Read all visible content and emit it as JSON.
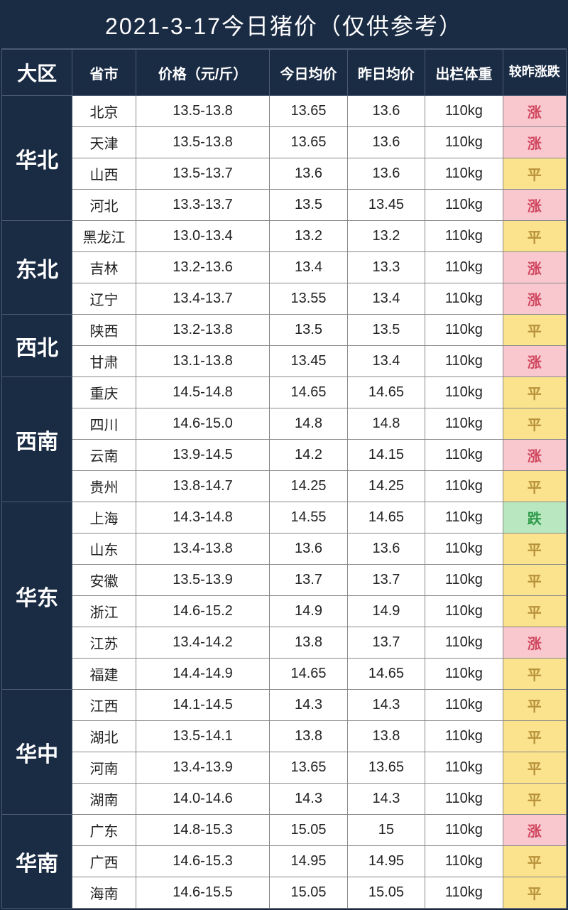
{
  "title": "2021-3-17今日猪价（仅供参考）",
  "columns": {
    "region": "大区",
    "province": "省市",
    "priceRange": "价格（元/斤）",
    "todayAvg": "今日均价",
    "yesterdayAvg": "昨日均价",
    "weight": "出栏体重",
    "trend": "较昨涨跌"
  },
  "trendLabels": {
    "up": "涨",
    "flat": "平",
    "down": "跌"
  },
  "colors": {
    "headerBg": "#1a2b44",
    "headerText": "#ffffff",
    "cellBorder": "#888888",
    "upBg": "#f9c8cf",
    "upText": "#d04860",
    "flatBg": "#fbe38e",
    "flatText": "#b8923a",
    "downBg": "#b9e8c0",
    "downText": "#2e9a4a"
  },
  "columnWidthsPx": {
    "region": 100,
    "province": 90,
    "priceRange": 190,
    "todayAvg": 110,
    "yesterdayAvg": 110,
    "weight": 110,
    "trend": 90
  },
  "fontSizes": {
    "title": 32,
    "regionHeader": 28,
    "header": 20,
    "regionCell": 30,
    "cell": 20
  },
  "regions": [
    {
      "name": "华北",
      "rows": [
        {
          "province": "北京",
          "priceRange": "13.5-13.8",
          "today": "13.65",
          "yesterday": "13.6",
          "weight": "110kg",
          "trend": "up"
        },
        {
          "province": "天津",
          "priceRange": "13.5-13.8",
          "today": "13.65",
          "yesterday": "13.6",
          "weight": "110kg",
          "trend": "up"
        },
        {
          "province": "山西",
          "priceRange": "13.5-13.7",
          "today": "13.6",
          "yesterday": "13.6",
          "weight": "110kg",
          "trend": "flat"
        },
        {
          "province": "河北",
          "priceRange": "13.3-13.7",
          "today": "13.5",
          "yesterday": "13.45",
          "weight": "110kg",
          "trend": "up"
        }
      ]
    },
    {
      "name": "东北",
      "rows": [
        {
          "province": "黑龙江",
          "priceRange": "13.0-13.4",
          "today": "13.2",
          "yesterday": "13.2",
          "weight": "110kg",
          "trend": "flat"
        },
        {
          "province": "吉林",
          "priceRange": "13.2-13.6",
          "today": "13.4",
          "yesterday": "13.3",
          "weight": "110kg",
          "trend": "up"
        },
        {
          "province": "辽宁",
          "priceRange": "13.4-13.7",
          "today": "13.55",
          "yesterday": "13.4",
          "weight": "110kg",
          "trend": "up"
        }
      ]
    },
    {
      "name": "西北",
      "rows": [
        {
          "province": "陕西",
          "priceRange": "13.2-13.8",
          "today": "13.5",
          "yesterday": "13.5",
          "weight": "110kg",
          "trend": "flat"
        },
        {
          "province": "甘肃",
          "priceRange": "13.1-13.8",
          "today": "13.45",
          "yesterday": "13.4",
          "weight": "110kg",
          "trend": "up"
        }
      ]
    },
    {
      "name": "西南",
      "rows": [
        {
          "province": "重庆",
          "priceRange": "14.5-14.8",
          "today": "14.65",
          "yesterday": "14.65",
          "weight": "110kg",
          "trend": "flat"
        },
        {
          "province": "四川",
          "priceRange": "14.6-15.0",
          "today": "14.8",
          "yesterday": "14.8",
          "weight": "110kg",
          "trend": "flat"
        },
        {
          "province": "云南",
          "priceRange": "13.9-14.5",
          "today": "14.2",
          "yesterday": "14.15",
          "weight": "110kg",
          "trend": "up"
        },
        {
          "province": "贵州",
          "priceRange": "13.8-14.7",
          "today": "14.25",
          "yesterday": "14.25",
          "weight": "110kg",
          "trend": "flat"
        }
      ]
    },
    {
      "name": "华东",
      "rows": [
        {
          "province": "上海",
          "priceRange": "14.3-14.8",
          "today": "14.55",
          "yesterday": "14.65",
          "weight": "110kg",
          "trend": "down"
        },
        {
          "province": "山东",
          "priceRange": "13.4-13.8",
          "today": "13.6",
          "yesterday": "13.6",
          "weight": "110kg",
          "trend": "flat"
        },
        {
          "province": "安徽",
          "priceRange": "13.5-13.9",
          "today": "13.7",
          "yesterday": "13.7",
          "weight": "110kg",
          "trend": "flat"
        },
        {
          "province": "浙江",
          "priceRange": "14.6-15.2",
          "today": "14.9",
          "yesterday": "14.9",
          "weight": "110kg",
          "trend": "flat"
        },
        {
          "province": "江苏",
          "priceRange": "13.4-14.2",
          "today": "13.8",
          "yesterday": "13.7",
          "weight": "110kg",
          "trend": "up"
        },
        {
          "province": "福建",
          "priceRange": "14.4-14.9",
          "today": "14.65",
          "yesterday": "14.65",
          "weight": "110kg",
          "trend": "flat"
        }
      ]
    },
    {
      "name": "华中",
      "rows": [
        {
          "province": "江西",
          "priceRange": "14.1-14.5",
          "today": "14.3",
          "yesterday": "14.3",
          "weight": "110kg",
          "trend": "flat"
        },
        {
          "province": "湖北",
          "priceRange": "13.5-14.1",
          "today": "13.8",
          "yesterday": "13.8",
          "weight": "110kg",
          "trend": "flat"
        },
        {
          "province": "河南",
          "priceRange": "13.4-13.9",
          "today": "13.65",
          "yesterday": "13.65",
          "weight": "110kg",
          "trend": "flat"
        },
        {
          "province": "湖南",
          "priceRange": "14.0-14.6",
          "today": "14.3",
          "yesterday": "14.3",
          "weight": "110kg",
          "trend": "flat"
        }
      ]
    },
    {
      "name": "华南",
      "rows": [
        {
          "province": "广东",
          "priceRange": "14.8-15.3",
          "today": "15.05",
          "yesterday": "15",
          "weight": "110kg",
          "trend": "up"
        },
        {
          "province": "广西",
          "priceRange": "14.6-15.3",
          "today": "14.95",
          "yesterday": "14.95",
          "weight": "110kg",
          "trend": "flat"
        },
        {
          "province": "海南",
          "priceRange": "14.6-15.5",
          "today": "15.05",
          "yesterday": "15.05",
          "weight": "110kg",
          "trend": "flat"
        }
      ]
    }
  ]
}
